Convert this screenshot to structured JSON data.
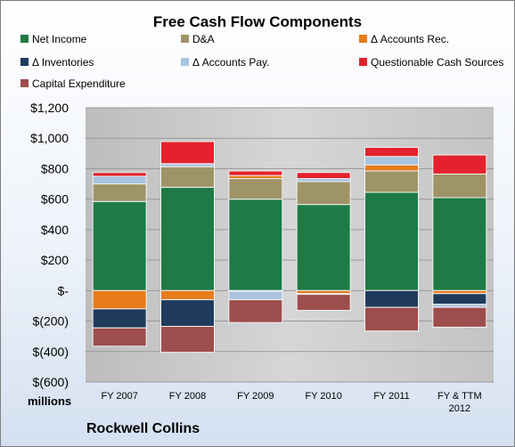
{
  "chart_data": {
    "type": "bar",
    "stacked": true,
    "title": "Free Cash Flow Components",
    "categories": [
      "FY 2007",
      "FY 2008",
      "FY 2009",
      "FY 2010",
      "FY 2011",
      "FY & TTM 2012"
    ],
    "series": [
      {
        "name": "Net Income",
        "color": "#1e7b45",
        "values": [
          585,
          678,
          600,
          565,
          645,
          610
        ]
      },
      {
        "name": "D&A",
        "color": "#9e9467",
        "values": [
          115,
          135,
          135,
          150,
          140,
          155
        ]
      },
      {
        "name": "Δ Accounts Rec.",
        "color": "#e87b1c",
        "values": [
          -120,
          -60,
          20,
          -20,
          40,
          -20
        ]
      },
      {
        "name": "Δ Inventories",
        "color": "#1f3b5b",
        "values": [
          -125,
          -175,
          -5,
          -5,
          -110,
          -70
        ]
      },
      {
        "name": "Δ Accounts Pay.",
        "color": "#a9c3e0",
        "values": [
          50,
          20,
          -55,
          20,
          55,
          -20
        ]
      },
      {
        "name": "Questionable Cash Sources",
        "color": "#e3222d",
        "values": [
          25,
          145,
          30,
          40,
          60,
          125
        ]
      },
      {
        "name": "Capital Expenditure",
        "color": "#9d4d4c",
        "values": [
          -120,
          -170,
          -150,
          -105,
          -155,
          -130
        ]
      }
    ],
    "ylim": [
      -600,
      1200
    ],
    "ytick_labels": [
      "$1,200",
      "$1,000",
      "$800",
      "$600",
      "$400",
      "$200",
      "$-",
      "$(200)",
      "$(400)",
      "$(600)"
    ],
    "ytick_values": [
      1200,
      1000,
      800,
      600,
      400,
      200,
      0,
      -200,
      -400,
      -600
    ],
    "units": "millions",
    "legend_position": "top",
    "grid": true,
    "plot_background": "#cdcdcd"
  },
  "footer": {
    "company": "Rockwell Collins"
  }
}
